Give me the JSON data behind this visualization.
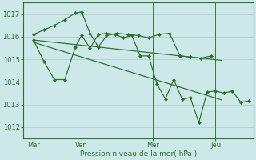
{
  "bg_color": "#cce8e8",
  "grid_color": "#aacccc",
  "line_color": "#2a6e2a",
  "xlabel": "Pression niveau de la mer( hPa )",
  "ylim": [
    1011.5,
    1017.5
  ],
  "yticks": [
    1012,
    1013,
    1014,
    1015,
    1016,
    1017
  ],
  "xlim": [
    0,
    11
  ],
  "x_tick_labels": [
    "Mar",
    "Ven",
    "Mer",
    "Jeu"
  ],
  "x_tick_positions": [
    0.5,
    2.8,
    6.2,
    9.2
  ],
  "vline_positions": [
    0.5,
    2.8,
    6.2,
    9.2
  ],
  "series_upper": {
    "x": [
      0.5,
      1.0,
      1.5,
      2.0,
      2.5,
      2.8,
      3.2,
      3.6,
      4.0,
      4.5,
      5.0,
      5.5,
      6.0,
      6.5,
      7.0,
      7.5,
      8.0,
      8.5,
      9.0
    ],
    "y": [
      1016.1,
      1016.3,
      1016.5,
      1016.75,
      1017.05,
      1017.1,
      1016.15,
      1015.55,
      1016.05,
      1016.15,
      1016.1,
      1016.05,
      1015.95,
      1016.1,
      1016.15,
      1015.15,
      1015.1,
      1015.05,
      1015.15
    ]
  },
  "series_trend1": {
    "x": [
      0.5,
      9.5
    ],
    "y": [
      1015.85,
      1014.95
    ]
  },
  "series_trend2": {
    "x": [
      0.5,
      9.5
    ],
    "y": [
      1015.75,
      1013.2
    ]
  },
  "series_lower": {
    "x": [
      0.5,
      1.0,
      1.5,
      2.0,
      2.5,
      2.8,
      3.2,
      3.6,
      4.0,
      4.4,
      4.8,
      5.2,
      5.6,
      6.0,
      6.4,
      6.8,
      7.2,
      7.6,
      8.0,
      8.4,
      8.8,
      9.2,
      9.6,
      10.0,
      10.4,
      10.8
    ],
    "y": [
      1015.85,
      1014.9,
      1014.1,
      1014.1,
      1015.55,
      1016.05,
      1015.5,
      1016.1,
      1016.15,
      1016.1,
      1015.95,
      1016.05,
      1015.15,
      1015.15,
      1013.9,
      1013.25,
      1014.1,
      1013.25,
      1013.3,
      1012.2,
      1013.55,
      1013.6,
      1013.5,
      1013.6,
      1013.1,
      1013.15
    ]
  }
}
